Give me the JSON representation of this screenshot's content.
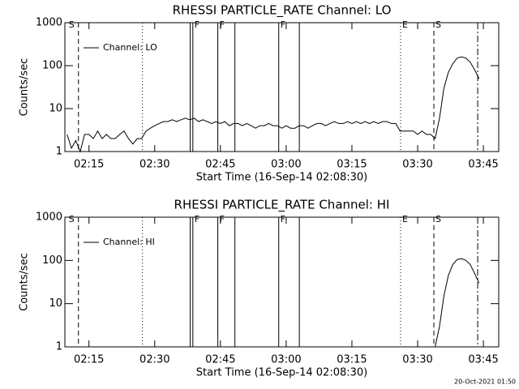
{
  "chart_data": [
    {
      "type": "line",
      "title": "RHESSI PARTICLE_RATE Channel: LO",
      "xlabel": "Start Time (16-Sep-14 02:08:30)",
      "ylabel": "Counts/sec",
      "xlim": [
        9.5,
        108.5
      ],
      "xticks": [
        {
          "value": 15,
          "label": "02:15"
        },
        {
          "value": 30,
          "label": "02:30"
        },
        {
          "value": 45,
          "label": "02:45"
        },
        {
          "value": 60,
          "label": "03:00"
        },
        {
          "value": 75,
          "label": "03:15"
        },
        {
          "value": 90,
          "label": "03:30"
        },
        {
          "value": 105,
          "label": "03:45"
        }
      ],
      "ylim": [
        1,
        1000
      ],
      "yticks": [
        1,
        10,
        100,
        1000
      ],
      "ylog": true,
      "legend": "upper left",
      "series": [
        {
          "name": "Channel: LO",
          "color": "#000000",
          "x": [
            10,
            11,
            12,
            13,
            14,
            15,
            16,
            17,
            18,
            19,
            20,
            21,
            22,
            23,
            24,
            25,
            26,
            27,
            28,
            29,
            30,
            31,
            32,
            33,
            34,
            35,
            36,
            37,
            38,
            39,
            40,
            41,
            42,
            43,
            44,
            45,
            46,
            47,
            48,
            49,
            50,
            51,
            52,
            53,
            54,
            55,
            56,
            57,
            58,
            59,
            60,
            61,
            62,
            63,
            64,
            65,
            66,
            67,
            68,
            69,
            70,
            71,
            72,
            73,
            74,
            75,
            76,
            77,
            78,
            79,
            80,
            81,
            82,
            83,
            84,
            85,
            86,
            87,
            88,
            89,
            90,
            91,
            92,
            93,
            94,
            95,
            96,
            97,
            98,
            99,
            100,
            101,
            102,
            103,
            104
          ],
          "values": [
            2.5,
            1.2,
            1.8,
            1,
            2.5,
            2.5,
            2,
            3,
            2,
            2.5,
            2,
            2,
            2.5,
            3,
            2,
            1.5,
            2,
            2,
            3,
            3.5,
            4,
            4.5,
            5,
            5,
            5.5,
            5,
            5.5,
            6,
            5.5,
            6,
            5,
            5.5,
            5,
            4.5,
            5,
            4.5,
            5,
            4,
            4.5,
            4.5,
            4,
            4.5,
            4,
            3.5,
            4,
            4,
            4.5,
            4,
            4,
            3.5,
            4,
            3.5,
            3.5,
            4,
            4,
            3.5,
            4,
            4.5,
            4.5,
            4,
            4.5,
            5,
            4.5,
            4.5,
            5,
            4.5,
            5,
            4.5,
            5,
            4.5,
            5,
            4.5,
            5,
            5,
            4.5,
            4.5,
            3,
            3,
            3,
            3,
            2.5,
            3,
            2.5,
            2.5,
            2,
            6,
            30,
            70,
            110,
            150,
            160,
            150,
            120,
            80,
            50
          ]
        }
      ],
      "markers": [
        {
          "x": 12.6,
          "style": "dashed",
          "label": "S",
          "label_side": "left"
        },
        {
          "x": 27.2,
          "style": "dotted"
        },
        {
          "x": 38.1,
          "style": "solid"
        },
        {
          "x": 38.7,
          "style": "solid",
          "label": "F"
        },
        {
          "x": 44.4,
          "style": "solid",
          "label": "F"
        },
        {
          "x": 48.3,
          "style": "solid"
        },
        {
          "x": 58.3,
          "style": "solid",
          "label": "F"
        },
        {
          "x": 63.0,
          "style": "solid"
        },
        {
          "x": 86.1,
          "style": "dotted",
          "label": "E"
        },
        {
          "x": 93.7,
          "style": "dashed",
          "label": "S"
        },
        {
          "x": 103.7,
          "style": "dashdot"
        }
      ]
    },
    {
      "type": "line",
      "title": "RHESSI PARTICLE_RATE Channel: HI",
      "xlabel": "Start Time (16-Sep-14 02:08:30)",
      "ylabel": "Counts/sec",
      "xlim": [
        9.5,
        108.5
      ],
      "xticks": [
        {
          "value": 15,
          "label": "02:15"
        },
        {
          "value": 30,
          "label": "02:30"
        },
        {
          "value": 45,
          "label": "02:45"
        },
        {
          "value": 60,
          "label": "03:00"
        },
        {
          "value": 75,
          "label": "03:15"
        },
        {
          "value": 90,
          "label": "03:30"
        },
        {
          "value": 105,
          "label": "03:45"
        }
      ],
      "ylim": [
        1,
        1000
      ],
      "yticks": [
        1,
        10,
        100,
        1000
      ],
      "ylog": true,
      "legend": "upper left",
      "series": [
        {
          "name": "Channel: HI",
          "color": "#000000",
          "x": [
            94,
            95,
            96,
            97,
            98,
            99,
            100,
            101,
            102,
            103,
            104
          ],
          "values": [
            1,
            3,
            15,
            45,
            80,
            105,
            110,
            100,
            80,
            50,
            30
          ]
        }
      ],
      "markers": [
        {
          "x": 12.6,
          "style": "dashed",
          "label": "S",
          "label_side": "left"
        },
        {
          "x": 27.2,
          "style": "dotted"
        },
        {
          "x": 38.1,
          "style": "solid"
        },
        {
          "x": 38.7,
          "style": "solid",
          "label": "F"
        },
        {
          "x": 44.4,
          "style": "solid",
          "label": "F"
        },
        {
          "x": 48.3,
          "style": "solid"
        },
        {
          "x": 58.3,
          "style": "solid",
          "label": "F"
        },
        {
          "x": 63.0,
          "style": "solid"
        },
        {
          "x": 86.1,
          "style": "dotted",
          "label": "E"
        },
        {
          "x": 93.7,
          "style": "dashed",
          "label": "S"
        },
        {
          "x": 103.7,
          "style": "dashdot"
        }
      ]
    }
  ],
  "timestamp": "20-Oct-2021 01:50"
}
